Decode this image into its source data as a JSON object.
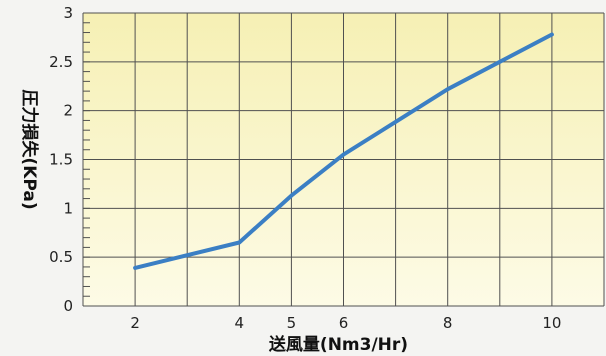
{
  "chart_data": {
    "type": "line",
    "title": "",
    "xlabel": "送風量(Nm3/Hr)",
    "ylabel": "圧力損失(KPa)",
    "x_ticks": [
      "2",
      "4",
      "5",
      "6",
      "8",
      "10"
    ],
    "y_ticks": [
      "0",
      "0.5",
      "1",
      "1.5",
      "2",
      "2.5",
      "3"
    ],
    "xlim": [
      1,
      11
    ],
    "ylim": [
      0,
      3
    ],
    "grid": true,
    "series": [
      {
        "x": [
          2,
          4,
          5,
          6,
          8,
          10
        ],
        "y": [
          0.39,
          0.65,
          1.13,
          1.55,
          2.22,
          2.78
        ]
      }
    ],
    "colors": {
      "line": "#3b7fc4",
      "plot_bg_top": "#f6f0b4",
      "plot_bg_bottom": "#fdfbe6",
      "grid": "#505050"
    }
  }
}
